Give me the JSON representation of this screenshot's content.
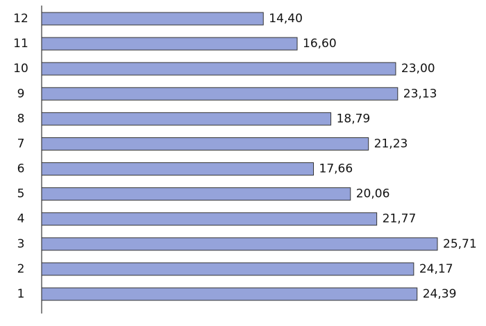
{
  "chart_data": {
    "type": "bar",
    "orientation": "horizontal",
    "categories": [
      "1",
      "2",
      "3",
      "4",
      "5",
      "6",
      "7",
      "8",
      "9",
      "10",
      "11",
      "12"
    ],
    "values": [
      24.39,
      24.17,
      25.71,
      21.77,
      20.06,
      17.66,
      21.23,
      18.79,
      23.13,
      23.0,
      16.6,
      14.4
    ],
    "value_labels": [
      "24,39",
      "24,17",
      "25,71",
      "21,77",
      "20,06",
      "17,66",
      "21,23",
      "18,79",
      "23,13",
      "23,00",
      "16,60",
      "14,40"
    ],
    "color": "#95a3da"
  }
}
